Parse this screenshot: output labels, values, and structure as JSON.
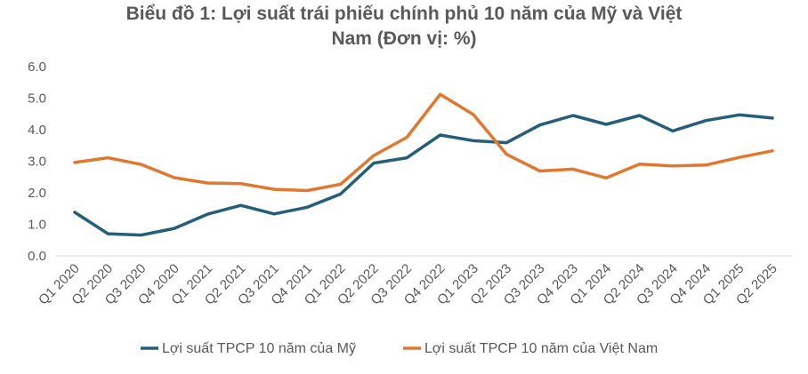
{
  "chart_data": {
    "type": "line",
    "title_line1": "Biểu đồ 1: Lợi suất trái phiếu chính phủ 10 năm của Mỹ và Việt",
    "title_line2": "Nam (Đơn vị: %)",
    "xlabel": "",
    "ylabel": "",
    "ylim": [
      0,
      6
    ],
    "yticks": [
      "0.0",
      "1.0",
      "2.0",
      "3.0",
      "4.0",
      "5.0",
      "6.0"
    ],
    "grid": false,
    "legend_position": "bottom",
    "categories": [
      "Q1 2020",
      "Q2 2020",
      "Q3 2020",
      "Q4 2020",
      "Q1 2021",
      "Q2 2021",
      "Q3 2021",
      "Q4 2021",
      "Q1 2022",
      "Q2 2022",
      "Q3 2022",
      "Q4 2022",
      "Q1 2023",
      "Q2 2023",
      "Q3 2023",
      "Q4 2023",
      "Q1 2024",
      "Q2 2024",
      "Q3 2024",
      "Q4 2024",
      "Q1 2025",
      "Q2 2025"
    ],
    "series": [
      {
        "name": "Lợi suất TPCP 10 năm của Mỹ",
        "color": "#255E79",
        "values": [
          1.38,
          0.7,
          0.66,
          0.87,
          1.32,
          1.6,
          1.33,
          1.54,
          1.96,
          2.94,
          3.11,
          3.83,
          3.65,
          3.59,
          4.15,
          4.45,
          4.17,
          4.45,
          3.96,
          4.29,
          4.47,
          4.37
        ]
      },
      {
        "name": "Lợi suất TPCP 10 năm của Việt Nam",
        "color": "#E0782F",
        "values": [
          2.96,
          3.11,
          2.9,
          2.48,
          2.31,
          2.29,
          2.11,
          2.07,
          2.27,
          3.18,
          3.76,
          5.12,
          4.48,
          3.22,
          2.69,
          2.75,
          2.47,
          2.91,
          2.85,
          2.88,
          3.12,
          3.33
        ]
      }
    ]
  }
}
